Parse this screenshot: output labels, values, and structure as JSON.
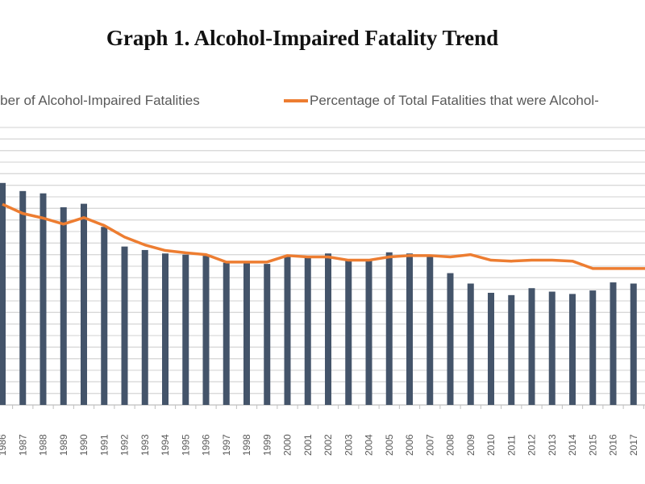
{
  "title": "Graph 1. Alcohol-Impaired Fatality Trend",
  "colors": {
    "bars": "#44546a",
    "line": "#ed7d31",
    "grid": "#d9d9d9"
  },
  "chart_data": {
    "type": "bar+line",
    "title": "Graph 1. Alcohol-Impaired Fatality Trend",
    "legend_position": "top",
    "grid": true,
    "categories": [
      "1986",
      "1987",
      "1988",
      "1989",
      "1990",
      "1991",
      "1992",
      "1993",
      "1994",
      "1995",
      "1996",
      "1997",
      "1998",
      "1999",
      "2000",
      "2001",
      "2002",
      "2003",
      "2004",
      "2005",
      "2006",
      "2007",
      "2008",
      "2009",
      "2010",
      "2011",
      "2012",
      "2013",
      "2014",
      "2015",
      "2016",
      "2017"
    ],
    "series": [
      {
        "name": "Number of Alcohol-Impaired Fatalities",
        "type": "bar",
        "axis": "primary",
        "values": [
          19200,
          18500,
          18300,
          17100,
          17400,
          15400,
          13700,
          13400,
          13100,
          13000,
          12900,
          12300,
          12300,
          12200,
          12900,
          12800,
          13100,
          12600,
          12600,
          13200,
          13100,
          12900,
          11400,
          10500,
          9700,
          9500,
          10100,
          9800,
          9600,
          9900,
          10600,
          10500
        ]
      },
      {
        "name": "Percentage of Total Fatalities that were Alcohol-Impaired",
        "type": "line",
        "axis": "secondary",
        "values": [
          43.4,
          41.4,
          40.4,
          39.1,
          40.5,
          38.8,
          36.3,
          34.6,
          33.4,
          32.9,
          32.5,
          30.9,
          30.9,
          30.9,
          32.3,
          32.0,
          32.0,
          31.3,
          31.3,
          32.0,
          32.3,
          32.3,
          32.0,
          32.5,
          31.3,
          31.1,
          31.3,
          31.3,
          31.1,
          29.5,
          29.5,
          29.5
        ]
      }
    ],
    "legend_labels_visible": [
      "mber of Alcohol-Impaired Fatalities",
      "Percentage of Total Fatalities that were Alcohol-"
    ],
    "ylim": [
      0,
      24000
    ],
    "y2lim": [
      0,
      60
    ]
  }
}
